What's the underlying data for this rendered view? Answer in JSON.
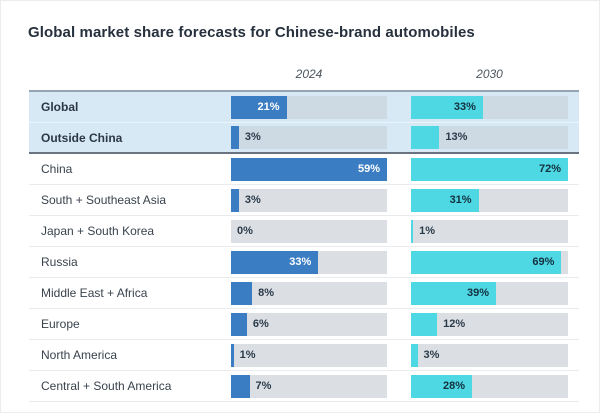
{
  "title": "Global market share forecasts for Chinese-brand automobiles",
  "chart_data": {
    "type": "bar",
    "orientation": "horizontal",
    "title": "Global market share forecasts for Chinese-brand automobiles",
    "column_headers": [
      "2024",
      "2030"
    ],
    "categories": [
      "Global",
      "Outside China",
      "China",
      "South + Southeast Asia",
      "Japan + South Korea",
      "Russia",
      "Middle East + Africa",
      "Europe",
      "North America",
      "Central + South America"
    ],
    "series": [
      {
        "name": "2024",
        "values": [
          21,
          3,
          59,
          3,
          0,
          33,
          8,
          6,
          1,
          7
        ],
        "color": "#3a7dc2",
        "scale_max": 59,
        "value_inside_color": "#ffffff"
      },
      {
        "name": "2030",
        "values": [
          33,
          13,
          72,
          31,
          1,
          69,
          39,
          12,
          3,
          28
        ],
        "color": "#4ed8e3",
        "scale_max": 72,
        "value_inside_color": "#14303f"
      }
    ],
    "value_suffix": "%",
    "highlighted_categories": [
      "Global",
      "Outside China"
    ],
    "legend_position": "none",
    "grid": false
  },
  "colors": {
    "bar_2024": "#3a7dc2",
    "bar_2030": "#4ed8e3",
    "track": "#dbdfe4",
    "track_highlight": "#cdd9e3",
    "row_highlight_bg": "#d8e9f6",
    "value_outside": "#2b3a49",
    "separator_strong": "#6a7480",
    "separator_top": "#94a4b5",
    "title_text": "#26313d",
    "year_header_text": "#4d565f"
  }
}
